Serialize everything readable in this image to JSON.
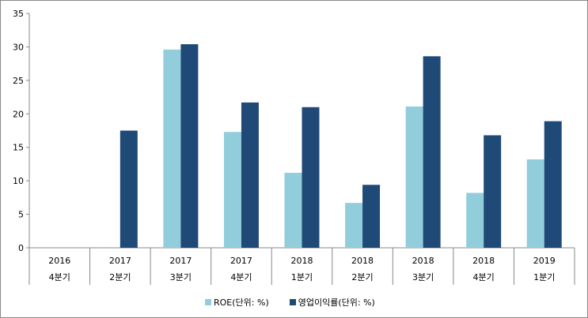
{
  "chart_data": {
    "type": "bar",
    "title": "",
    "xlabel": "",
    "ylabel": "",
    "ylim": [
      0,
      35
    ],
    "yticks": [
      0,
      5,
      10,
      15,
      20,
      25,
      30,
      35
    ],
    "categories": [
      {
        "year": "2016",
        "quarter": "4분기"
      },
      {
        "year": "2017",
        "quarter": "2분기"
      },
      {
        "year": "2017",
        "quarter": "3분기"
      },
      {
        "year": "2017",
        "quarter": "4분기"
      },
      {
        "year": "2018",
        "quarter": "1분기"
      },
      {
        "year": "2018",
        "quarter": "2분기"
      },
      {
        "year": "2018",
        "quarter": "3분기"
      },
      {
        "year": "2018",
        "quarter": "4분기"
      },
      {
        "year": "2019",
        "quarter": "1분기"
      }
    ],
    "series": [
      {
        "name": "ROE(단위: %)",
        "color": "#92CDDC",
        "values": [
          null,
          null,
          29.6,
          17.3,
          11.2,
          6.7,
          21.1,
          8.2,
          13.2
        ]
      },
      {
        "name": "영업이익률(단위: %)",
        "color": "#1F4A77",
        "values": [
          null,
          17.5,
          30.4,
          21.7,
          21.0,
          9.4,
          28.6,
          16.8,
          18.9
        ]
      }
    ],
    "legend_position": "bottom",
    "grid": false
  }
}
